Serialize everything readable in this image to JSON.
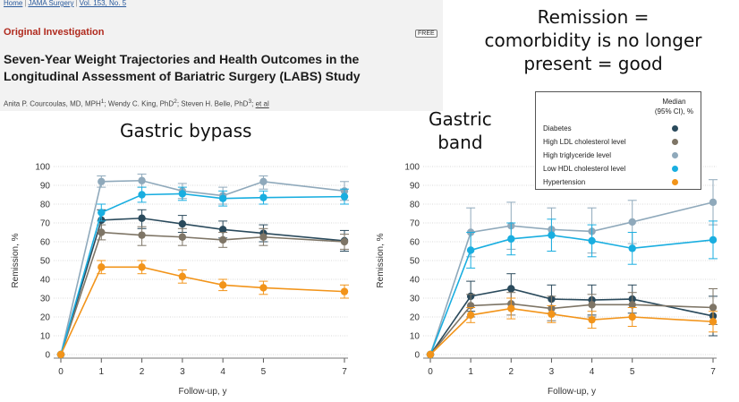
{
  "article": {
    "breadcrumb": [
      "Home",
      "JAMA Surgery",
      "Vol. 153, No. 5"
    ],
    "section_label": "Original Investigation",
    "badge": "FREE",
    "title": "Seven-Year Weight Trajectories and Health Outcomes in the Longitudinal Assessment of Bariatric Surgery (LABS) Study",
    "authors": "Anita P. Courcoulas, MD, MPH",
    "authors_rest": "; Wendy C. King, PhD",
    "authors_rest2": "; Steven H. Belle, PhD",
    "authors_rest3": "; ",
    "author_sup": [
      "1",
      "2",
      "3"
    ],
    "etal": "et al"
  },
  "annotations": {
    "remission_note": [
      "Remission =",
      "comorbidity is no longer",
      "present = good"
    ],
    "bypass_label": "Gastric bypass",
    "band_label": [
      "Gastric",
      "band"
    ]
  },
  "legend": {
    "header": [
      "Median",
      "(95% CI), %"
    ],
    "items": [
      {
        "label": "Diabetes",
        "color": "#2a4a5c"
      },
      {
        "label": "High LDL cholesterol level",
        "color": "#7e7566"
      },
      {
        "label": "High triglyceride level",
        "color": "#8fa9bb"
      },
      {
        "label": "Low HDL cholesterol level",
        "color": "#19aee0"
      },
      {
        "label": "Hypertension",
        "color": "#f2941a"
      }
    ]
  },
  "chart_data": [
    {
      "type": "line",
      "title": "Gastric bypass",
      "xlabel": "Follow-up, y",
      "ylabel": "Remission, %",
      "x": [
        0,
        1,
        2,
        3,
        4,
        5,
        7
      ],
      "ylim": [
        0,
        100
      ],
      "yticks": [
        0,
        10,
        20,
        30,
        40,
        50,
        60,
        70,
        80,
        90,
        100
      ],
      "series": [
        {
          "name": "Diabetes",
          "color": "#2a4a5c",
          "values": [
            0,
            71.5,
            72.5,
            69.5,
            66.5,
            64.5,
            60.5
          ],
          "ci_low": [
            0,
            65,
            67,
            65,
            62,
            60,
            55
          ],
          "ci_high": [
            0,
            77,
            77,
            74,
            71,
            69,
            66
          ]
        },
        {
          "name": "High LDL cholesterol level",
          "color": "#7e7566",
          "values": [
            0,
            65,
            63.5,
            62.5,
            61,
            62.5,
            60
          ],
          "ci_low": [
            0,
            61,
            58,
            58,
            57,
            58,
            56
          ],
          "ci_high": [
            0,
            69,
            68,
            67,
            65,
            67,
            64
          ]
        },
        {
          "name": "High triglyceride level",
          "color": "#8fa9bb",
          "values": [
            0,
            92,
            92.5,
            87,
            84.5,
            92,
            87
          ],
          "ci_low": [
            0,
            89,
            89,
            83,
            80,
            88,
            82
          ],
          "ci_high": [
            0,
            95,
            96,
            91,
            89,
            95,
            92
          ]
        },
        {
          "name": "Low HDL cholesterol level",
          "color": "#19aee0",
          "values": [
            0,
            75.5,
            85,
            85.5,
            83,
            83.5,
            84
          ],
          "ci_low": [
            0,
            71,
            81,
            82,
            79,
            80,
            80
          ],
          "ci_high": [
            0,
            80,
            89,
            89,
            87,
            87,
            88
          ]
        },
        {
          "name": "Hypertension",
          "color": "#f2941a",
          "values": [
            0,
            46.5,
            46.5,
            41.5,
            37,
            35.5,
            33.5
          ],
          "ci_low": [
            0,
            43,
            43,
            38,
            34,
            32,
            30
          ],
          "ci_high": [
            0,
            50,
            50,
            45,
            40,
            39,
            37
          ]
        }
      ]
    },
    {
      "type": "line",
      "title": "Gastric band",
      "xlabel": "Follow-up, y",
      "ylabel": "Remission, %",
      "x": [
        0,
        1,
        2,
        3,
        4,
        5,
        7
      ],
      "ylim": [
        0,
        100
      ],
      "yticks": [
        0,
        10,
        20,
        30,
        40,
        50,
        60,
        70,
        80,
        90,
        100
      ],
      "series": [
        {
          "name": "Diabetes",
          "color": "#2a4a5c",
          "values": [
            0,
            31,
            35,
            29.5,
            29,
            29.5,
            20.5
          ],
          "ci_low": [
            0,
            23,
            27,
            22,
            21,
            22,
            10
          ],
          "ci_high": [
            0,
            39,
            43,
            37,
            37,
            37,
            31
          ]
        },
        {
          "name": "High LDL cholesterol level",
          "color": "#7e7566",
          "values": [
            0,
            26,
            27,
            24.5,
            26.5,
            26.5,
            25
          ],
          "ci_low": [
            0,
            20,
            21,
            18,
            20,
            20,
            16
          ],
          "ci_high": [
            0,
            32,
            33,
            31,
            32,
            33,
            35
          ]
        },
        {
          "name": "High triglyceride level",
          "color": "#8fa9bb",
          "values": [
            0,
            65,
            68.5,
            66.5,
            65.5,
            70.5,
            81
          ],
          "ci_low": [
            0,
            52,
            56,
            55,
            54,
            59,
            69
          ],
          "ci_high": [
            0,
            78,
            81,
            78,
            78,
            82,
            93
          ]
        },
        {
          "name": "Low HDL cholesterol level",
          "color": "#19aee0",
          "values": [
            0,
            55.5,
            61.5,
            63.5,
            60.5,
            56.5,
            61
          ],
          "ci_low": [
            0,
            46,
            53,
            55,
            52,
            48,
            51
          ],
          "ci_high": [
            0,
            65,
            70,
            72,
            69,
            65,
            71
          ]
        },
        {
          "name": "Hypertension",
          "color": "#f2941a",
          "values": [
            0,
            21,
            24.5,
            21.5,
            18.5,
            20,
            17.5
          ],
          "ci_low": [
            0,
            17,
            19,
            17,
            14,
            15,
            12
          ],
          "ci_high": [
            0,
            25,
            30,
            26,
            23,
            25,
            23
          ]
        }
      ]
    }
  ]
}
